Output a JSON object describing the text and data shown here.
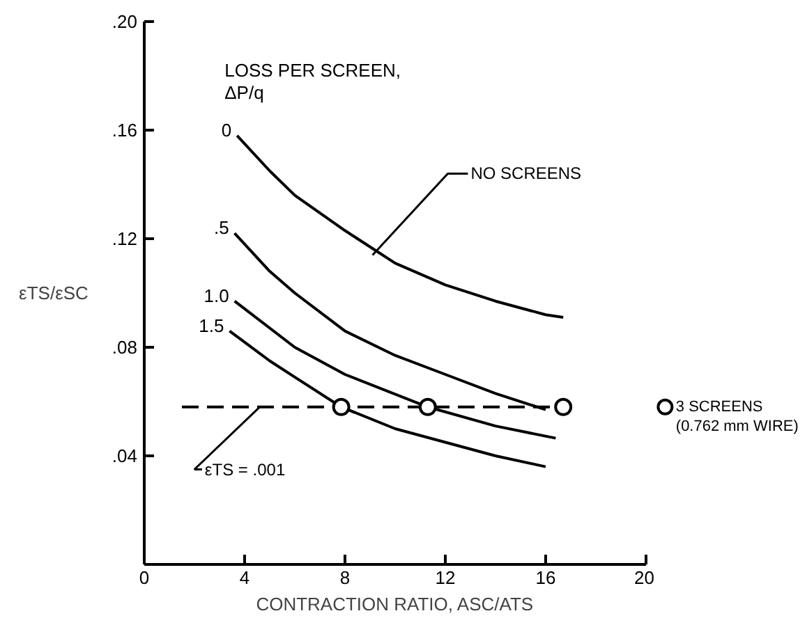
{
  "chart_data": {
    "type": "line",
    "xlabel": "CONTRACTION RATIO, ASC/ATS",
    "ylabel": "εTS/εSC",
    "legend_title": "LOSS PER SCREEN, ΔP/q",
    "xlim": [
      0,
      20
    ],
    "ylim": [
      0,
      0.2
    ],
    "xticks": [
      0,
      4,
      8,
      12,
      16,
      20
    ],
    "yticks": [
      {
        "value": 0,
        "label": null
      },
      {
        "value": 0.04,
        "label": ".04"
      },
      {
        "value": 0.08,
        "label": ".08"
      },
      {
        "value": 0.12,
        "label": ".12"
      },
      {
        "value": 0.16,
        "label": ".16"
      },
      {
        "value": 0.2,
        "label": ".20"
      }
    ],
    "series": [
      {
        "name": "0",
        "color": "#000000",
        "x": [
          3.7,
          5,
          6,
          8,
          10,
          12,
          14,
          16,
          16.7
        ],
        "values": [
          0.158,
          0.145,
          0.136,
          0.123,
          0.111,
          0.103,
          0.097,
          0.092,
          0.091
        ]
      },
      {
        "name": ".5",
        "color": "#000000",
        "x": [
          3.6,
          5,
          6,
          8,
          10,
          12,
          14,
          16
        ],
        "values": [
          0.122,
          0.108,
          0.1,
          0.086,
          0.077,
          0.07,
          0.063,
          0.057
        ]
      },
      {
        "name": "1.0",
        "color": "#000000",
        "x": [
          3.6,
          6,
          8,
          11.3,
          14,
          16.4
        ],
        "values": [
          0.097,
          0.08,
          0.07,
          0.058,
          0.051,
          0.0465
        ]
      },
      {
        "name": "1.5",
        "color": "#000000",
        "x": [
          3.4,
          5,
          6,
          7.85,
          10,
          12,
          14,
          16
        ],
        "values": [
          0.086,
          0.075,
          0.069,
          0.058,
          0.05,
          0.045,
          0.04,
          0.036
        ]
      },
      {
        "color": "#000000",
        "line_style": "dashed",
        "x": [
          1.5,
          16.7
        ],
        "values": [
          0.058,
          0.058
        ]
      },
      {
        "name": "3 SCREENS\n(0.762 mm WIRE)",
        "type": "scatter",
        "marker": "circle",
        "color": "#000000",
        "x": [
          7.85,
          11.3,
          16.7
        ],
        "values": [
          0.058,
          0.058,
          0.058
        ]
      }
    ],
    "annotations": [
      {
        "text": "NO SCREENS",
        "x": 9.1,
        "y": 0.114
      },
      {
        "text": "εTS = .001",
        "x": 4.6,
        "y": 0.058
      }
    ]
  }
}
